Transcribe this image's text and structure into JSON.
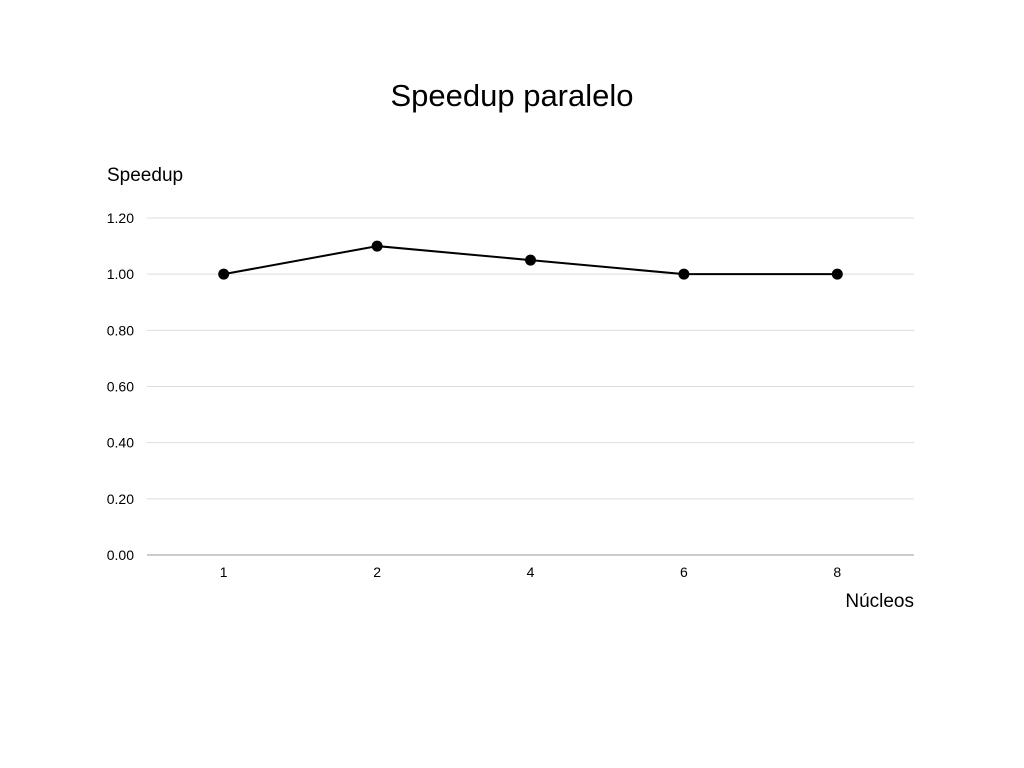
{
  "chart_data": {
    "type": "line",
    "title": "Speedup paralelo",
    "xlabel": "Núcleos",
    "ylabel": "Speedup",
    "categories": [
      "1",
      "2",
      "4",
      "6",
      "8"
    ],
    "series": [
      {
        "values": [
          1.0,
          1.1,
          1.05,
          1.0,
          1.0
        ],
        "color": "#000000"
      }
    ],
    "ylim": [
      0,
      1.2
    ],
    "yticks": [
      "0.00",
      "0.20",
      "0.40",
      "0.60",
      "0.80",
      "1.00",
      "1.20"
    ],
    "grid": true,
    "legend": "none"
  }
}
